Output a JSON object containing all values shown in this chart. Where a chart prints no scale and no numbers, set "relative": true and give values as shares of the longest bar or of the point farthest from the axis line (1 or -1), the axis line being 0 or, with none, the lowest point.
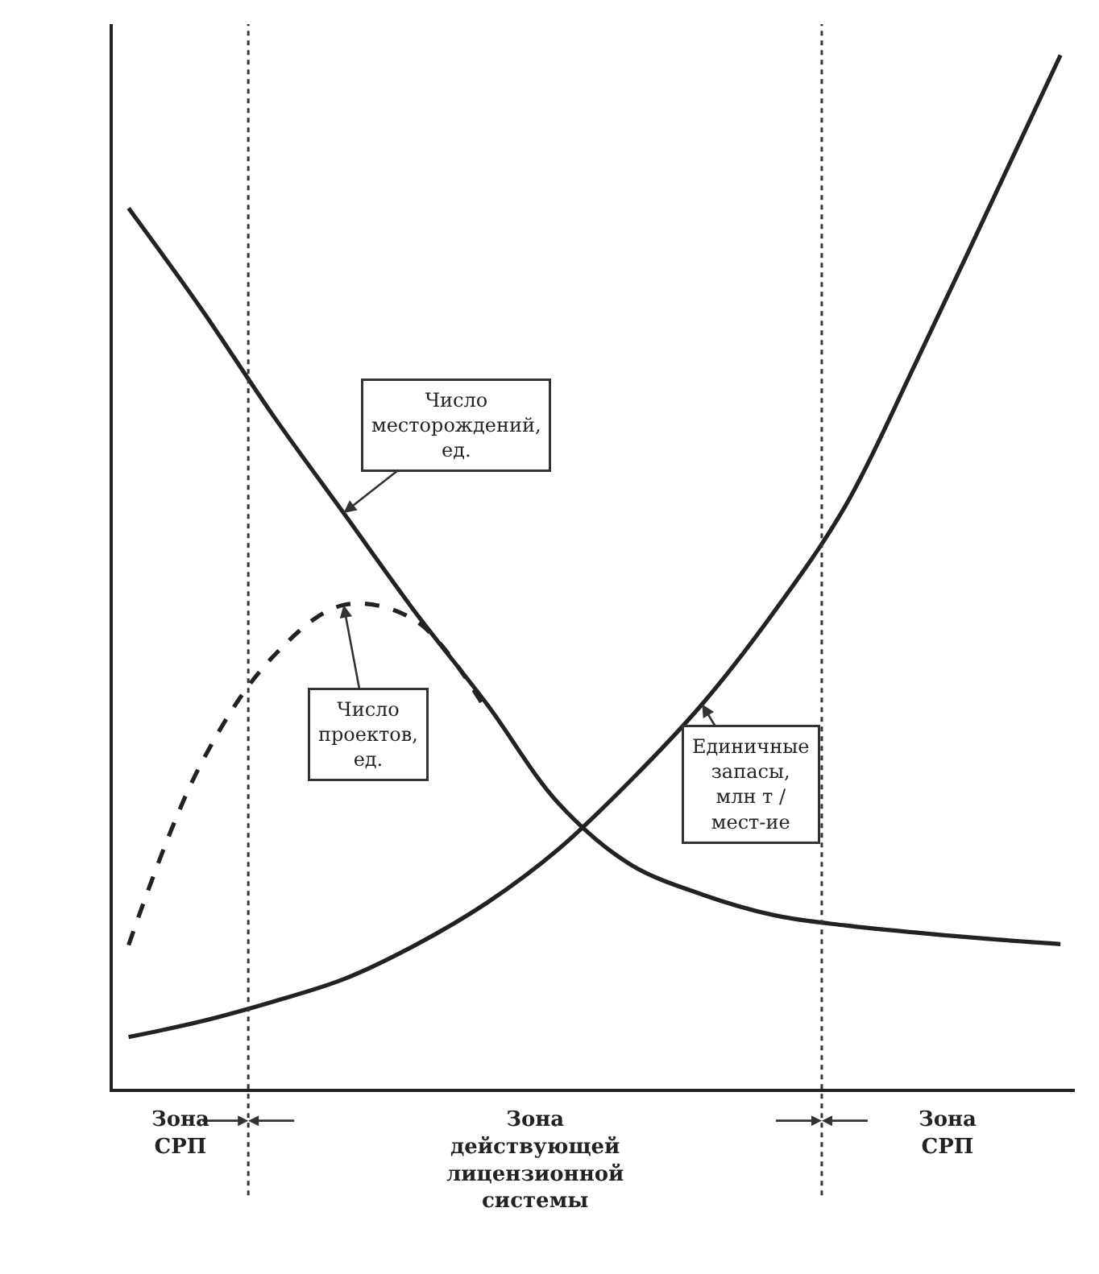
{
  "chart_data": {
    "type": "line",
    "relative": true,
    "categories": [
      null,
      null,
      null,
      null,
      null,
      null,
      null,
      null,
      null,
      null,
      null,
      null,
      null,
      null
    ],
    "series": [
      {
        "name": "Число месторождений, ед.",
        "color": "#222222",
        "line_style": "solid",
        "values": [
          0.852,
          0.756,
          0.653,
          0.557,
          0.461,
          0.372,
          0.276,
          0.217,
          0.188,
          0.168,
          0.158,
          0.151,
          0.145,
          0.14
        ]
      },
      {
        "name": "Число проектов, ед.",
        "color": "#222222",
        "line_style": "dashed",
        "values": [
          0.139,
          0.313,
          0.417,
          0.468,
          0.453,
          0.365,
          null,
          null,
          null,
          null,
          null,
          null,
          null,
          null
        ]
      },
      {
        "name": "Единичные запасы, млн т / мест-ие",
        "color": "#222222",
        "line_style": "solid",
        "values": [
          0.05,
          0.065,
          0.084,
          0.106,
          0.139,
          0.18,
          0.232,
          0.298,
          0.372,
          0.461,
          0.564,
          0.705,
          0.852,
          1.0
        ]
      }
    ],
    "annotations": [
      "Зона СРП",
      "Зона действующей лицензионной системы",
      "Зона СРП"
    ],
    "legend": false,
    "marker": "none"
  }
}
